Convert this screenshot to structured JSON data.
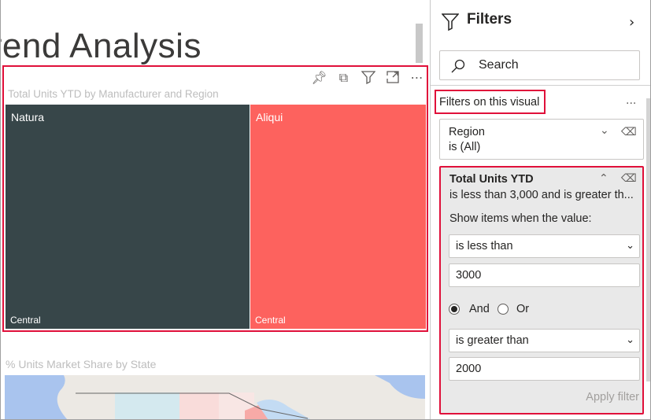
{
  "report": {
    "page_title": "Trend Analysis",
    "visual": {
      "title": "Total Units YTD by Manufacturer and Region",
      "header_icons": [
        "pin-icon",
        "copy-icon",
        "filter-icon",
        "focus-mode-icon",
        "more-options-icon"
      ],
      "tiles": [
        {
          "label": "Natura",
          "sub": "Central",
          "color": "#374649"
        },
        {
          "label": "Aliqui",
          "sub": "Central",
          "color": "#fd625e"
        }
      ]
    },
    "map_title": "% Units Market Share by State"
  },
  "filters": {
    "title": "Filters",
    "search_placeholder": "Search",
    "section_title": "Filters on this visual",
    "section_more": "...",
    "region_card": {
      "name": "Region",
      "summary": "is (All)"
    },
    "units_card": {
      "name": "Total Units YTD",
      "summary": "is less than 3,000 and is greater th...",
      "show_label": "Show items when the value:",
      "condition1": "is less than",
      "value1": "3000",
      "and_label": "And",
      "or_label": "Or",
      "logic_selected": "And",
      "condition2": "is greater than",
      "value2": "2000",
      "apply_label": "Apply filter"
    }
  },
  "colors": {
    "highlight": "#e0103a"
  }
}
